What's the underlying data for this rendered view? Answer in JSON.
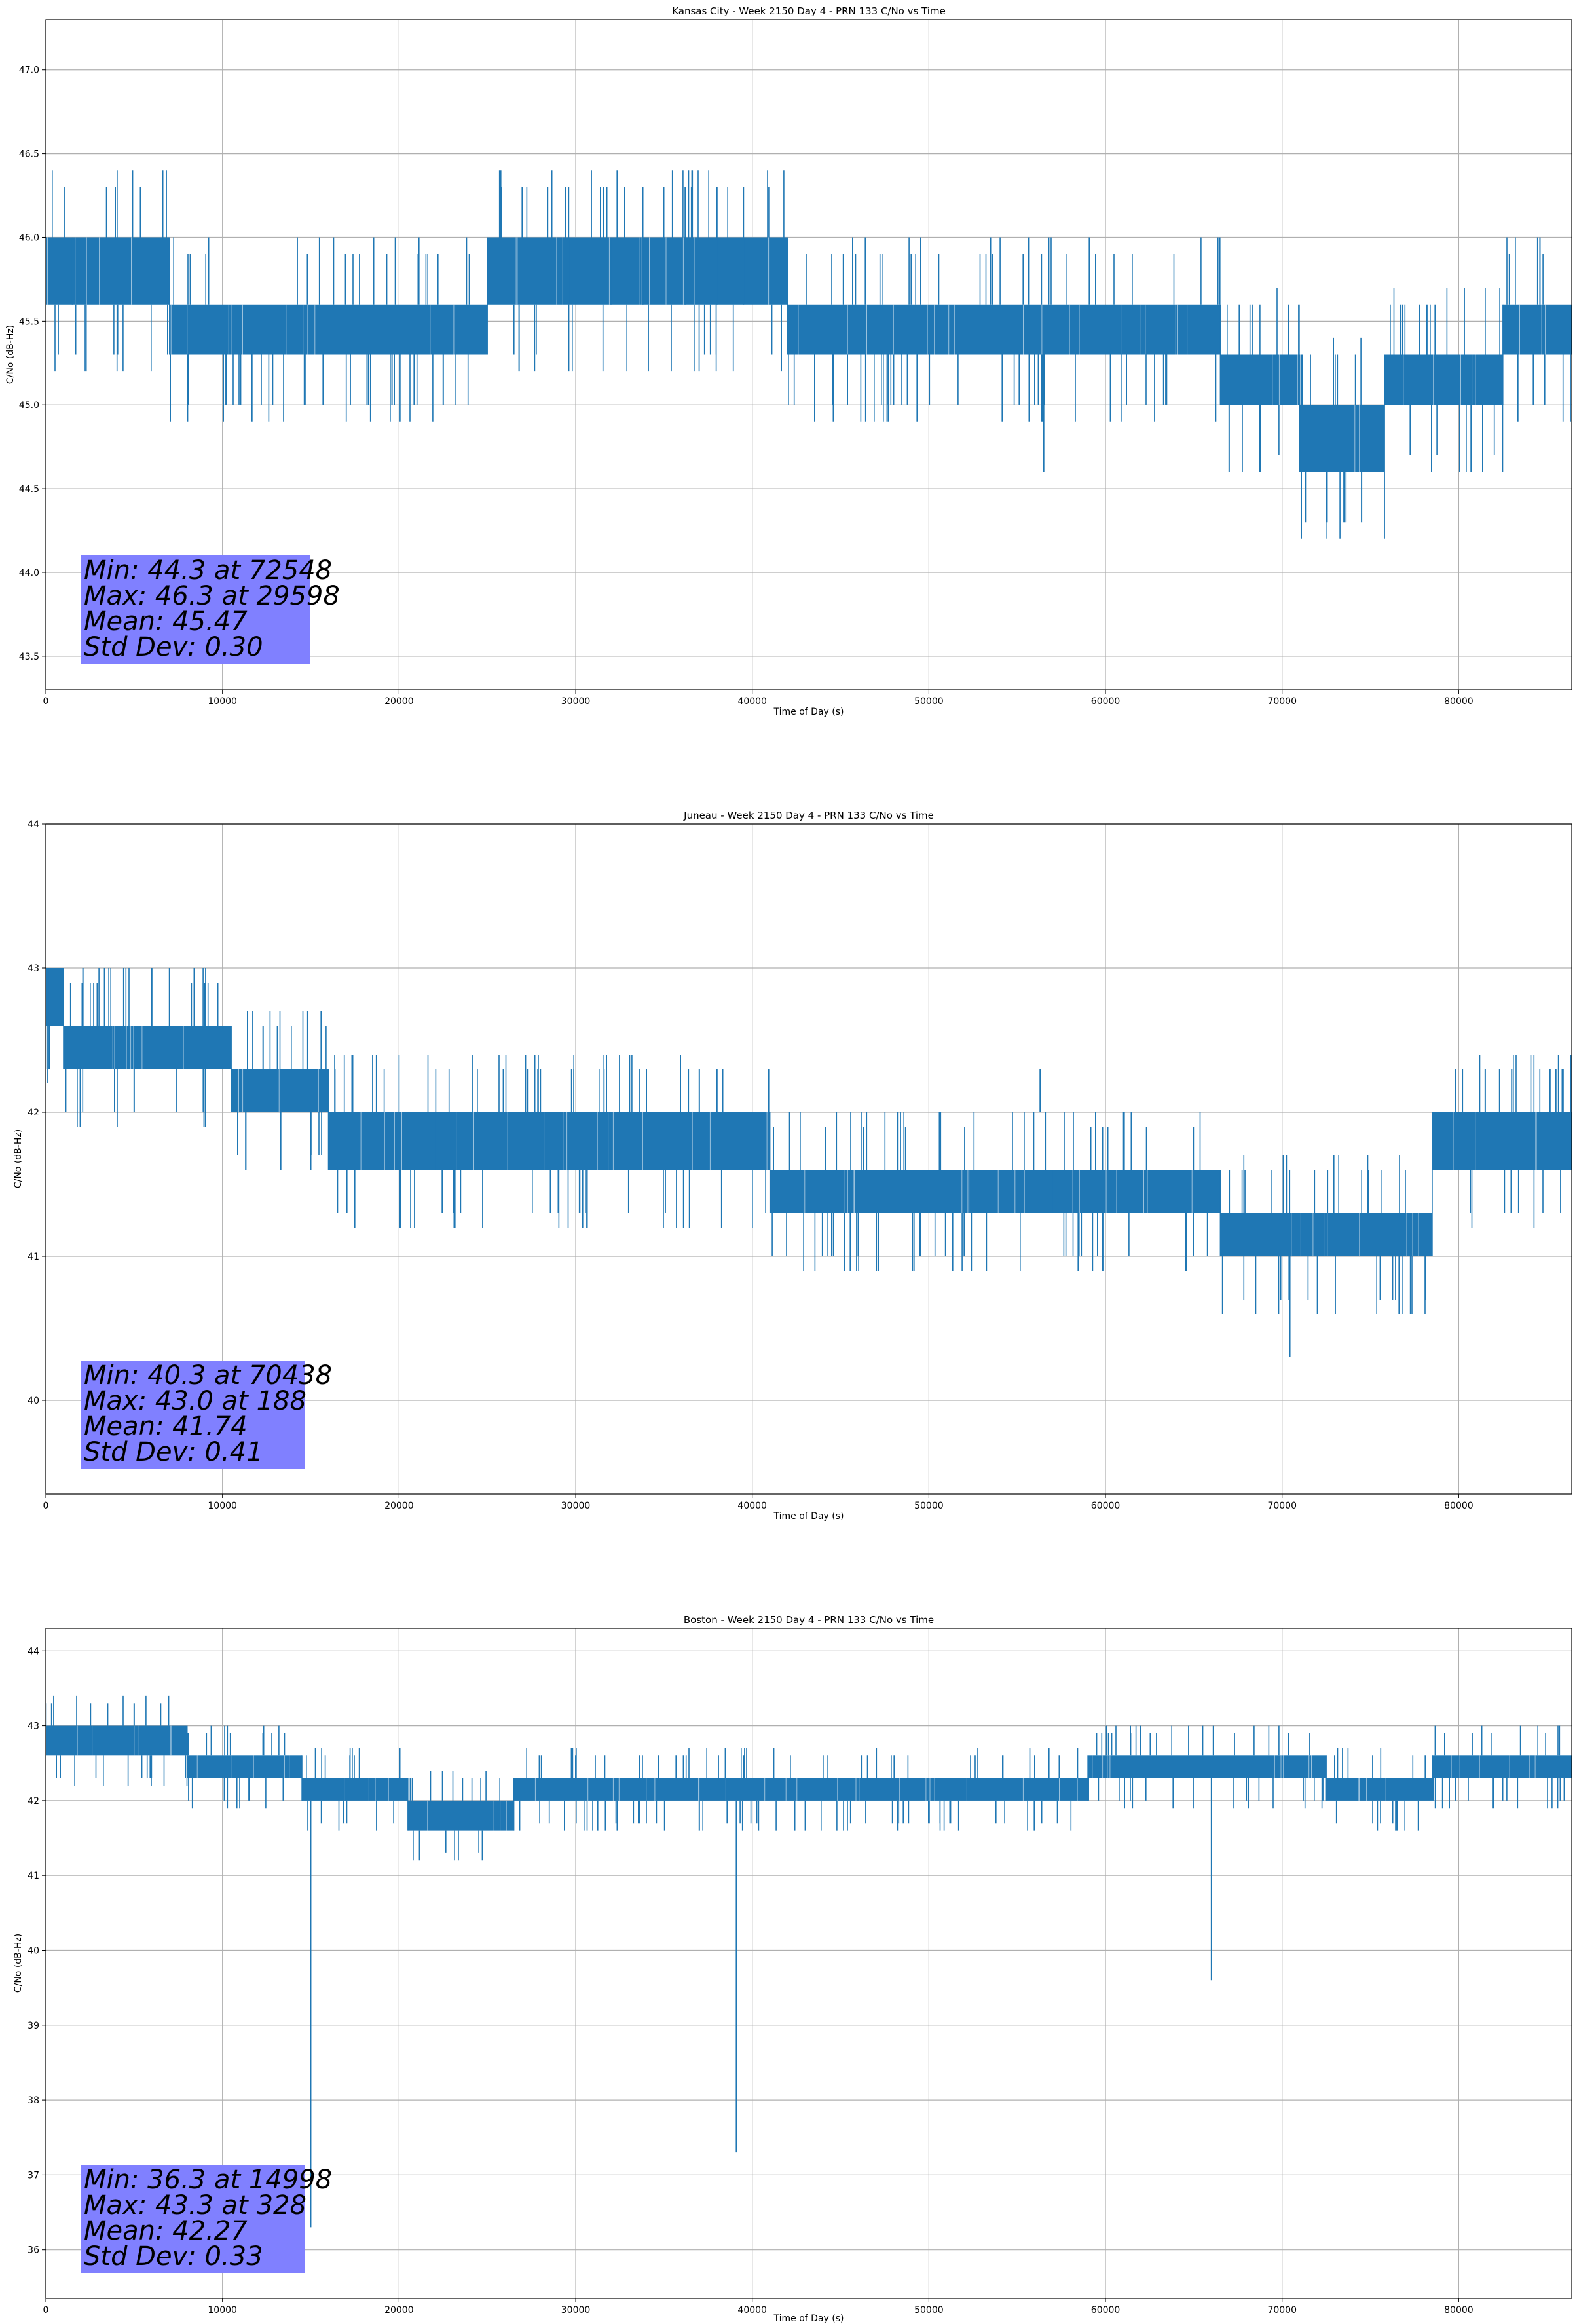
{
  "figure": {
    "line_color": "#1f77b4",
    "stats_box_color": "#8080ff",
    "grid_color": "#b0b0b0"
  },
  "chart_data": [
    {
      "type": "line",
      "title": "Kansas City - Week 2150 Day 4 - PRN 133 C/No vs Time",
      "xlabel": "Time of Day (s)",
      "ylabel": "C/No (dB-Hz)",
      "xlim": [
        0,
        86400
      ],
      "ylim": [
        43.3,
        47.3
      ],
      "grid": true,
      "x_ticks": [
        0,
        10000,
        20000,
        30000,
        40000,
        50000,
        60000,
        70000,
        80000
      ],
      "x_tick_labels": [
        "0",
        "10000",
        "20000",
        "30000",
        "40000",
        "50000",
        "60000",
        "70000",
        "80000"
      ],
      "y_ticks": [
        43.5,
        44.0,
        44.5,
        45.0,
        45.5,
        46.0,
        46.5,
        47.0
      ],
      "y_tick_labels": [
        "43.5",
        "44.0",
        "44.5",
        "45.0",
        "45.5",
        "46.0",
        "46.5",
        "47.0"
      ],
      "series": [
        {
          "name": "C/No",
          "bands": [
            {
              "x0": 0,
              "x1": 1500,
              "lo": 45.6,
              "hi": 46.0
            },
            {
              "x0": 1500,
              "x1": 7000,
              "lo": 45.6,
              "hi": 46.0
            },
            {
              "x0": 7000,
              "x1": 25000,
              "lo": 45.3,
              "hi": 45.6
            },
            {
              "x0": 25000,
              "x1": 32000,
              "lo": 45.6,
              "hi": 46.0
            },
            {
              "x0": 32000,
              "x1": 42000,
              "lo": 45.6,
              "hi": 46.0
            },
            {
              "x0": 42000,
              "x1": 66500,
              "lo": 45.3,
              "hi": 45.6
            },
            {
              "x0": 66500,
              "x1": 71000,
              "lo": 45.0,
              "hi": 45.3
            },
            {
              "x0": 71000,
              "x1": 75800,
              "lo": 44.6,
              "hi": 45.0
            },
            {
              "x0": 75800,
              "x1": 82500,
              "lo": 45.0,
              "hi": 45.3
            },
            {
              "x0": 82500,
              "x1": 86400,
              "lo": 45.3,
              "hi": 45.6
            }
          ],
          "spikes": [
            {
              "x": 29598,
              "lo": 45.6,
              "hi": 46.3
            },
            {
              "x": 33800,
              "lo": 45.6,
              "hi": 46.3
            },
            {
              "x": 36200,
              "lo": 45.6,
              "hi": 46.3
            },
            {
              "x": 38000,
              "lo": 45.6,
              "hi": 46.3
            },
            {
              "x": 39500,
              "lo": 45.6,
              "hi": 46.3
            },
            {
              "x": 10200,
              "lo": 45.0,
              "hi": 45.3
            },
            {
              "x": 15700,
              "lo": 45.0,
              "hi": 45.3
            },
            {
              "x": 19600,
              "lo": 45.0,
              "hi": 45.3
            },
            {
              "x": 22500,
              "lo": 45.0,
              "hi": 45.3
            },
            {
              "x": 48000,
              "lo": 45.0,
              "hi": 45.3
            },
            {
              "x": 56500,
              "lo": 44.6,
              "hi": 45.3
            },
            {
              "x": 67000,
              "lo": 44.6,
              "hi": 45.0
            },
            {
              "x": 72548,
              "lo": 44.3,
              "hi": 44.6
            },
            {
              "x": 73500,
              "lo": 44.3,
              "hi": 44.6
            },
            {
              "x": 74500,
              "lo": 44.3,
              "hi": 44.6
            },
            {
              "x": 80700,
              "lo": 44.6,
              "hi": 45.0
            },
            {
              "x": 78200,
              "lo": 45.3,
              "hi": 45.6
            },
            {
              "x": 84600,
              "lo": 45.6,
              "hi": 46.0
            }
          ]
        }
      ],
      "stats": {
        "min_text": "Min: 44.3 at 72548",
        "max_text": "Max: 46.3 at 29598",
        "mean_text": "Mean: 45.47",
        "std_text": "Std Dev: 0.30"
      }
    },
    {
      "type": "line",
      "title": "Juneau - Week 2150 Day 4 - PRN 133 C/No vs Time",
      "xlabel": "Time of Day (s)",
      "ylabel": "C/No (dB-Hz)",
      "xlim": [
        0,
        86400
      ],
      "ylim": [
        39.35,
        44.0
      ],
      "grid": true,
      "x_ticks": [
        0,
        10000,
        20000,
        30000,
        40000,
        50000,
        60000,
        70000,
        80000
      ],
      "x_tick_labels": [
        "0",
        "10000",
        "20000",
        "30000",
        "40000",
        "50000",
        "60000",
        "70000",
        "80000"
      ],
      "y_ticks": [
        40,
        41,
        42,
        43,
        44
      ],
      "y_tick_labels": [
        "40",
        "41",
        "42",
        "43",
        "44"
      ],
      "series": [
        {
          "name": "C/No",
          "bands": [
            {
              "x0": 0,
              "x1": 1000,
              "lo": 42.6,
              "hi": 43.0
            },
            {
              "x0": 1000,
              "x1": 10500,
              "lo": 42.3,
              "hi": 42.6
            },
            {
              "x0": 10500,
              "x1": 16000,
              "lo": 42.0,
              "hi": 42.3
            },
            {
              "x0": 16000,
              "x1": 22000,
              "lo": 41.6,
              "hi": 42.0
            },
            {
              "x0": 22000,
              "x1": 41000,
              "lo": 41.6,
              "hi": 42.0
            },
            {
              "x0": 41000,
              "x1": 57000,
              "lo": 41.3,
              "hi": 41.6
            },
            {
              "x0": 57000,
              "x1": 66500,
              "lo": 41.3,
              "hi": 41.6
            },
            {
              "x0": 66500,
              "x1": 78500,
              "lo": 41.0,
              "hi": 41.3
            },
            {
              "x0": 78500,
              "x1": 86400,
              "lo": 41.6,
              "hi": 42.0
            }
          ],
          "spikes": [
            {
              "x": 188,
              "lo": 42.3,
              "hi": 43.0
            },
            {
              "x": 2100,
              "lo": 42.6,
              "hi": 43.0
            },
            {
              "x": 6000,
              "lo": 42.6,
              "hi": 43.0
            },
            {
              "x": 7000,
              "lo": 42.6,
              "hi": 43.0
            },
            {
              "x": 8400,
              "lo": 42.6,
              "hi": 43.0
            },
            {
              "x": 5000,
              "lo": 42.0,
              "hi": 42.3
            },
            {
              "x": 12300,
              "lo": 42.3,
              "hi": 42.6
            },
            {
              "x": 37000,
              "lo": 42.0,
              "hi": 42.3
            },
            {
              "x": 38000,
              "lo": 42.0,
              "hi": 42.3
            },
            {
              "x": 56300,
              "lo": 42.0,
              "hi": 42.3
            },
            {
              "x": 13300,
              "lo": 41.6,
              "hi": 42.0
            },
            {
              "x": 15000,
              "lo": 41.6,
              "hi": 42.0
            },
            {
              "x": 33000,
              "lo": 41.3,
              "hi": 41.6
            },
            {
              "x": 46000,
              "lo": 41.0,
              "hi": 41.3
            },
            {
              "x": 49500,
              "lo": 41.0,
              "hi": 41.3
            },
            {
              "x": 52000,
              "lo": 41.0,
              "hi": 41.3
            },
            {
              "x": 70438,
              "lo": 40.3,
              "hi": 41.0
            },
            {
              "x": 68500,
              "lo": 40.6,
              "hi": 41.0
            },
            {
              "x": 69800,
              "lo": 40.6,
              "hi": 41.0
            },
            {
              "x": 72000,
              "lo": 40.6,
              "hi": 41.0
            },
            {
              "x": 79800,
              "lo": 42.0,
              "hi": 42.3
            },
            {
              "x": 81500,
              "lo": 42.0,
              "hi": 42.3
            },
            {
              "x": 83000,
              "lo": 42.0,
              "hi": 42.3
            },
            {
              "x": 85500,
              "lo": 42.0,
              "hi": 42.3
            }
          ]
        }
      ],
      "stats": {
        "min_text": "Min: 40.3 at 70438",
        "max_text": "Max: 43.0 at 188",
        "mean_text": "Mean: 41.74",
        "std_text": "Std Dev: 0.41"
      }
    },
    {
      "type": "line",
      "title": "Boston - Week 2150 Day 4 - PRN 133 C/No vs Time",
      "xlabel": "Time of Day (s)",
      "ylabel": "C/No (dB-Hz)",
      "xlim": [
        0,
        86400
      ],
      "ylim": [
        35.35,
        44.3
      ],
      "grid": true,
      "x_ticks": [
        0,
        10000,
        20000,
        30000,
        40000,
        50000,
        60000,
        70000,
        80000
      ],
      "x_tick_labels": [
        "0",
        "10000",
        "20000",
        "30000",
        "40000",
        "50000",
        "60000",
        "70000",
        "80000"
      ],
      "y_ticks": [
        36,
        37,
        38,
        39,
        40,
        41,
        42,
        43,
        44
      ],
      "y_tick_labels": [
        "36",
        "37",
        "38",
        "39",
        "40",
        "41",
        "42",
        "43",
        "44"
      ],
      "series": [
        {
          "name": "C/No",
          "bands": [
            {
              "x0": 0,
              "x1": 8000,
              "lo": 42.6,
              "hi": 43.0
            },
            {
              "x0": 8000,
              "x1": 14500,
              "lo": 42.3,
              "hi": 42.6
            },
            {
              "x0": 14500,
              "x1": 20500,
              "lo": 42.0,
              "hi": 42.3
            },
            {
              "x0": 20500,
              "x1": 26500,
              "lo": 41.6,
              "hi": 42.0
            },
            {
              "x0": 26500,
              "x1": 59000,
              "lo": 42.0,
              "hi": 42.3
            },
            {
              "x0": 59000,
              "x1": 72500,
              "lo": 42.3,
              "hi": 42.6
            },
            {
              "x0": 72500,
              "x1": 78500,
              "lo": 42.0,
              "hi": 42.3
            },
            {
              "x0": 78500,
              "x1": 86400,
              "lo": 42.3,
              "hi": 42.6
            }
          ],
          "spikes": [
            {
              "x": 328,
              "lo": 43.0,
              "hi": 43.3
            },
            {
              "x": 3500,
              "lo": 43.0,
              "hi": 43.3
            },
            {
              "x": 5000,
              "lo": 43.0,
              "hi": 43.3
            },
            {
              "x": 6500,
              "lo": 43.0,
              "hi": 43.3
            },
            {
              "x": 14998,
              "lo": 36.3,
              "hi": 42.0
            },
            {
              "x": 39100,
              "lo": 37.3,
              "hi": 42.0
            },
            {
              "x": 66000,
              "lo": 39.6,
              "hi": 42.3
            },
            {
              "x": 11500,
              "lo": 42.0,
              "hi": 42.3
            },
            {
              "x": 37000,
              "lo": 41.6,
              "hi": 42.0
            },
            {
              "x": 43000,
              "lo": 41.6,
              "hi": 42.0
            },
            {
              "x": 62000,
              "lo": 42.6,
              "hi": 43.0
            },
            {
              "x": 65500,
              "lo": 42.6,
              "hi": 43.0
            },
            {
              "x": 81300,
              "lo": 42.6,
              "hi": 43.0
            },
            {
              "x": 83500,
              "lo": 42.6,
              "hi": 43.0
            },
            {
              "x": 85700,
              "lo": 42.6,
              "hi": 43.0
            },
            {
              "x": 76500,
              "lo": 41.6,
              "hi": 42.0
            }
          ]
        }
      ],
      "stats": {
        "min_text": "Min: 36.3 at 14998",
        "max_text": "Max: 43.3 at 328",
        "mean_text": "Mean: 42.27",
        "std_text": "Std Dev: 0.33"
      }
    }
  ]
}
